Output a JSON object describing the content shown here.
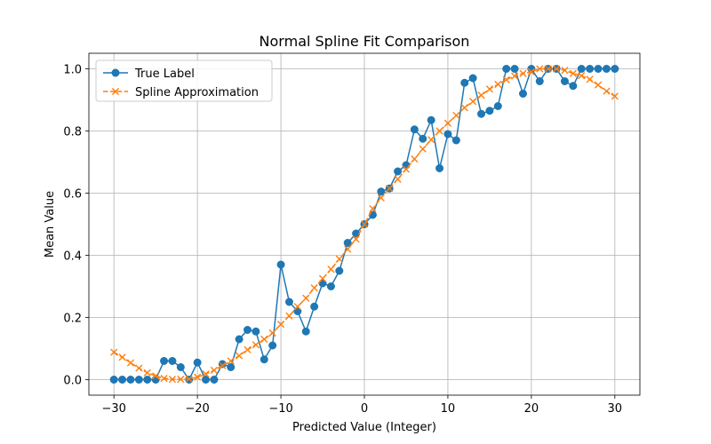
{
  "chart_data": {
    "type": "line",
    "title": "Normal Spline Fit Comparison",
    "xlabel": "Predicted Value (Integer)",
    "ylabel": "Mean Value",
    "xlim": [
      -33.0,
      33.0
    ],
    "ylim": [
      -0.05,
      1.05
    ],
    "xticks": [
      -30,
      -20,
      -10,
      0,
      10,
      20,
      30
    ],
    "yticks": [
      0.0,
      0.2,
      0.4,
      0.6,
      0.8,
      1.0
    ],
    "xtick_labels": [
      "−30",
      "−20",
      "−10",
      "0",
      "10",
      "20",
      "30"
    ],
    "ytick_labels": [
      "0.0",
      "0.2",
      "0.4",
      "0.6",
      "0.8",
      "1.0"
    ],
    "grid": true,
    "legend_position": "top-left",
    "x": [
      -30,
      -29,
      -28,
      -27,
      -26,
      -25,
      -24,
      -23,
      -22,
      -21,
      -20,
      -19,
      -18,
      -17,
      -16,
      -15,
      -14,
      -13,
      -12,
      -11,
      -10,
      -9,
      -8,
      -7,
      -6,
      -5,
      -4,
      -3,
      -2,
      -1,
      0,
      1,
      2,
      3,
      4,
      5,
      6,
      7,
      8,
      9,
      10,
      11,
      12,
      13,
      14,
      15,
      16,
      17,
      18,
      19,
      20,
      21,
      22,
      23,
      24,
      25,
      26,
      27,
      28,
      29,
      30
    ],
    "series": [
      {
        "name": "True Label",
        "color": "#1f77b4",
        "marker": "circle",
        "linestyle": "solid",
        "values": [
          0.0,
          0.0,
          0.0,
          0.0,
          0.0,
          0.0,
          0.06,
          0.06,
          0.04,
          0.0,
          0.055,
          0.0,
          0.0,
          0.05,
          0.04,
          0.13,
          0.16,
          0.155,
          0.065,
          0.11,
          0.37,
          0.25,
          0.22,
          0.155,
          0.235,
          0.31,
          0.3,
          0.35,
          0.44,
          0.47,
          0.5,
          0.53,
          0.605,
          0.615,
          0.67,
          0.69,
          0.805,
          0.775,
          0.835,
          0.68,
          0.79,
          0.77,
          0.955,
          0.97,
          0.855,
          0.865,
          0.88,
          1.0,
          1.0,
          0.92,
          1.0,
          0.96,
          1.0,
          1.0,
          0.96,
          0.945,
          1.0,
          1.0,
          1.0,
          1.0,
          1.0
        ]
      },
      {
        "name": "Spline Approximation",
        "color": "#ff7f0e",
        "marker": "x",
        "linestyle": "dashed",
        "values": [
          0.088,
          0.072,
          0.054,
          0.037,
          0.022,
          0.012,
          0.004,
          0.001,
          0.001,
          0.002,
          0.008,
          0.018,
          0.03,
          0.045,
          0.06,
          0.077,
          0.096,
          0.112,
          0.13,
          0.15,
          0.178,
          0.205,
          0.235,
          0.262,
          0.295,
          0.325,
          0.355,
          0.388,
          0.42,
          0.452,
          0.5,
          0.55,
          0.585,
          0.615,
          0.645,
          0.677,
          0.71,
          0.742,
          0.772,
          0.8,
          0.825,
          0.85,
          0.875,
          0.895,
          0.915,
          0.935,
          0.95,
          0.965,
          0.977,
          0.985,
          0.99,
          1.0,
          1.0,
          1.0,
          0.995,
          0.985,
          0.978,
          0.966,
          0.948,
          0.928,
          0.912
        ]
      }
    ]
  }
}
